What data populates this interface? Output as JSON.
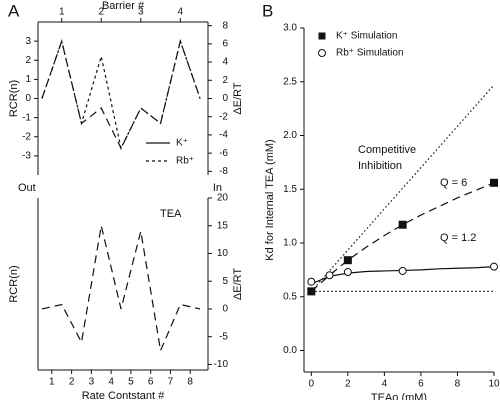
{
  "panels": [
    "A",
    "B"
  ],
  "chart_data": [
    {
      "type": "line",
      "x2label": "Barrier #",
      "ylabel": "RCR(n)",
      "y2label": "ΔE/RT",
      "x": [
        0,
        1,
        2,
        3,
        4,
        5,
        6,
        7,
        8
      ],
      "xlim": [
        -0.2,
        8.4
      ],
      "x2ticks": [
        {
          "value": 1,
          "label": "1"
        },
        {
          "value": 3,
          "label": "2"
        },
        {
          "value": 5,
          "label": "3"
        },
        {
          "value": 7,
          "label": "4"
        }
      ],
      "ylim": [
        -4,
        4
      ],
      "yticks": [
        3,
        2,
        1,
        0,
        -1,
        -2,
        -3
      ],
      "y2lim": [
        -8.4,
        8.4
      ],
      "y2ticks": [
        8,
        6,
        4,
        2,
        0,
        -2,
        -4,
        -6,
        -8
      ],
      "legend": "lower right",
      "series": [
        {
          "name": "K⁺",
          "color": "#111",
          "dash": "long",
          "values": [
            0,
            3,
            -1.3,
            -0.5,
            -2.6,
            -0.5,
            -1.3,
            3,
            0
          ]
        },
        {
          "name": "Rb⁺",
          "color": "#111",
          "dash": "short",
          "values": [
            0,
            3,
            -1.3,
            2.2,
            -2.6,
            -0.5,
            -1.3,
            3,
            0
          ]
        }
      ]
    },
    {
      "type": "line",
      "xlabel": "Rate Contstant #",
      "ylabel": "RCR(n)",
      "y2label": "ΔE/RT",
      "annotations": [
        "Out",
        "In",
        "TEA"
      ],
      "x": [
        0,
        1,
        2,
        3,
        4,
        5,
        6,
        7,
        8
      ],
      "xlim": [
        -0.2,
        8.4
      ],
      "xticks": [
        {
          "value": 0.5,
          "label": "1"
        },
        {
          "value": 1.5,
          "label": "2"
        },
        {
          "value": 2.5,
          "label": "3"
        },
        {
          "value": 3.5,
          "label": "4"
        },
        {
          "value": 4.5,
          "label": "5"
        },
        {
          "value": 5.5,
          "label": "6"
        },
        {
          "value": 6.5,
          "label": "7"
        },
        {
          "value": 7.5,
          "label": "8"
        }
      ],
      "y2lim": [
        -11,
        20
      ],
      "y2ticks": [
        20,
        15,
        10,
        5,
        0,
        -5,
        -10
      ],
      "series": [
        {
          "color": "#111",
          "dash": "long",
          "axis": "y2",
          "values": [
            0,
            0.8,
            -6,
            15,
            0,
            14,
            -7.5,
            0.8,
            0
          ]
        }
      ]
    },
    {
      "type": "line",
      "xlabel": "TEAo (mM)",
      "ylabel": "Kd for Internal TEA (mM)",
      "annotations": [
        "Competitive",
        "Inhibition",
        "Q = 6",
        "Q = 1.2"
      ],
      "xlim": [
        -0.4,
        10
      ],
      "xticks": [
        0,
        2,
        4,
        6,
        8,
        10
      ],
      "ylim": [
        -0.2,
        3.0
      ],
      "yticks": [
        {
          "value": 0,
          "label": "0.0"
        },
        {
          "value": 0.5,
          "label": "0.5"
        },
        {
          "value": 1,
          "label": "1.0"
        },
        {
          "value": 1.5,
          "label": "1.5"
        },
        {
          "value": 2,
          "label": "2.0"
        },
        {
          "value": 2.5,
          "label": "2.5"
        },
        {
          "value": 3,
          "label": "3.0"
        }
      ],
      "legend": "upper left",
      "series": [
        {
          "color": "#111",
          "dash": "long",
          "x": [
            0,
            1,
            2,
            3,
            4,
            5,
            6,
            7,
            8,
            9,
            10
          ],
          "values": [
            0.55,
            0.7,
            0.84,
            0.96,
            1.07,
            1.17,
            1.26,
            1.34,
            1.42,
            1.49,
            1.56
          ]
        },
        {
          "color": "#111",
          "dash": "solid",
          "x": [
            0,
            1,
            2,
            3,
            4,
            5,
            6,
            7,
            8,
            9,
            10
          ],
          "values": [
            0.62,
            0.69,
            0.72,
            0.735,
            0.74,
            0.745,
            0.75,
            0.76,
            0.765,
            0.77,
            0.78
          ]
        },
        {
          "color": "#111",
          "dash": "dotted",
          "x": [
            0,
            10
          ],
          "values": [
            0.55,
            2.47
          ]
        },
        {
          "color": "#111",
          "dash": "dotted",
          "x": [
            0,
            10
          ],
          "values": [
            0.55,
            0.55
          ]
        },
        {
          "name": "K⁺ Simulation",
          "color": "#111",
          "marker": "square",
          "x": [
            0,
            2,
            5,
            10
          ],
          "values": [
            0.55,
            0.84,
            1.17,
            1.56
          ]
        },
        {
          "name": "Rb⁺ Simulation",
          "color": "#111",
          "marker": "circle",
          "x": [
            0,
            1,
            2,
            5,
            10
          ],
          "values": [
            0.64,
            0.7,
            0.73,
            0.74,
            0.78
          ]
        }
      ]
    }
  ]
}
